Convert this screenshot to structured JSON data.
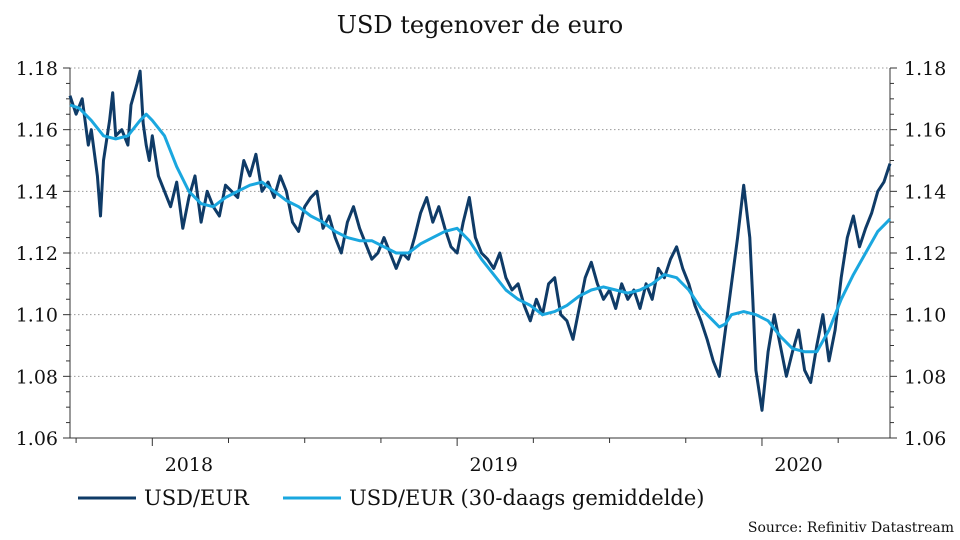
{
  "chart_data": {
    "type": "line",
    "title": "USD tegenover de euro",
    "source": "Source: Refinitiv Datastream",
    "ylim": [
      1.06,
      1.18
    ],
    "yticks": [
      "1.18",
      "1.16",
      "1.14",
      "1.12",
      "1.10",
      "1.08",
      "1.06"
    ],
    "xlim": [
      2017.73,
      2020.42
    ],
    "year_labels": [
      "2018",
      "2019",
      "2020"
    ],
    "grid": "horizontal dotted",
    "legend_position": "bottom-left",
    "colors": {
      "series1": "#0f3b67",
      "series2": "#1aa7df"
    },
    "series": [
      {
        "name": "USD/EUR",
        "x": [
          2017.73,
          2017.75,
          2017.77,
          2017.79,
          2017.8,
          2017.82,
          2017.83,
          2017.84,
          2017.86,
          2017.87,
          2017.88,
          2017.9,
          2017.92,
          2017.93,
          2017.95,
          2017.96,
          2017.97,
          2017.98,
          2017.99,
          2018.0,
          2018.02,
          2018.04,
          2018.06,
          2018.08,
          2018.1,
          2018.12,
          2018.14,
          2018.16,
          2018.18,
          2018.2,
          2018.22,
          2018.24,
          2018.26,
          2018.28,
          2018.3,
          2018.32,
          2018.34,
          2018.36,
          2018.38,
          2018.4,
          2018.42,
          2018.44,
          2018.46,
          2018.48,
          2018.5,
          2018.52,
          2018.54,
          2018.56,
          2018.58,
          2018.6,
          2018.62,
          2018.64,
          2018.66,
          2018.68,
          2018.7,
          2018.72,
          2018.74,
          2018.76,
          2018.78,
          2018.8,
          2018.82,
          2018.84,
          2018.86,
          2018.88,
          2018.9,
          2018.92,
          2018.94,
          2018.96,
          2018.98,
          2019.0,
          2019.02,
          2019.04,
          2019.06,
          2019.08,
          2019.1,
          2019.12,
          2019.14,
          2019.16,
          2019.18,
          2019.2,
          2019.22,
          2019.24,
          2019.26,
          2019.28,
          2019.3,
          2019.32,
          2019.34,
          2019.36,
          2019.38,
          2019.4,
          2019.42,
          2019.44,
          2019.46,
          2019.48,
          2019.5,
          2019.52,
          2019.54,
          2019.56,
          2019.58,
          2019.6,
          2019.62,
          2019.64,
          2019.66,
          2019.68,
          2019.7,
          2019.72,
          2019.74,
          2019.76,
          2019.78,
          2019.8,
          2019.82,
          2019.84,
          2019.86,
          2019.88,
          2019.9,
          2019.92,
          2019.94,
          2019.96,
          2019.97,
          2019.98,
          2020.0,
          2020.02,
          2020.04,
          2020.06,
          2020.08,
          2020.1,
          2020.12,
          2020.14,
          2020.16,
          2020.18,
          2020.2,
          2020.22,
          2020.24,
          2020.26,
          2020.28,
          2020.3,
          2020.32,
          2020.34,
          2020.36,
          2020.38,
          2020.4,
          2020.42
        ],
        "values": [
          1.171,
          1.165,
          1.17,
          1.155,
          1.16,
          1.145,
          1.132,
          1.15,
          1.163,
          1.172,
          1.158,
          1.16,
          1.155,
          1.168,
          1.175,
          1.179,
          1.162,
          1.155,
          1.15,
          1.158,
          1.145,
          1.14,
          1.135,
          1.143,
          1.128,
          1.138,
          1.145,
          1.13,
          1.14,
          1.135,
          1.132,
          1.142,
          1.14,
          1.138,
          1.15,
          1.145,
          1.152,
          1.14,
          1.143,
          1.138,
          1.145,
          1.14,
          1.13,
          1.127,
          1.135,
          1.138,
          1.14,
          1.128,
          1.132,
          1.125,
          1.12,
          1.13,
          1.135,
          1.128,
          1.123,
          1.118,
          1.12,
          1.125,
          1.12,
          1.115,
          1.12,
          1.118,
          1.125,
          1.133,
          1.138,
          1.13,
          1.135,
          1.128,
          1.122,
          1.12,
          1.13,
          1.138,
          1.125,
          1.12,
          1.118,
          1.115,
          1.12,
          1.112,
          1.108,
          1.11,
          1.103,
          1.098,
          1.105,
          1.1,
          1.11,
          1.112,
          1.1,
          1.098,
          1.092,
          1.102,
          1.112,
          1.117,
          1.11,
          1.105,
          1.108,
          1.102,
          1.11,
          1.105,
          1.108,
          1.102,
          1.11,
          1.105,
          1.115,
          1.112,
          1.118,
          1.122,
          1.115,
          1.11,
          1.103,
          1.098,
          1.092,
          1.085,
          1.08,
          1.095,
          1.11,
          1.125,
          1.142,
          1.125,
          1.105,
          1.082,
          1.069,
          1.088,
          1.1,
          1.09,
          1.08,
          1.088,
          1.095,
          1.082,
          1.078,
          1.09,
          1.1,
          1.085,
          1.095,
          1.112,
          1.125,
          1.132,
          1.122,
          1.128,
          1.133,
          1.14,
          1.143,
          1.149
        ]
      },
      {
        "name": "USD/EUR (30-daags gemiddelde)",
        "x": [
          2017.73,
          2017.76,
          2017.8,
          2017.84,
          2017.88,
          2017.92,
          2017.96,
          2017.98,
          2018.0,
          2018.04,
          2018.08,
          2018.12,
          2018.16,
          2018.2,
          2018.24,
          2018.28,
          2018.32,
          2018.36,
          2018.4,
          2018.44,
          2018.48,
          2018.52,
          2018.56,
          2018.6,
          2018.64,
          2018.68,
          2018.72,
          2018.76,
          2018.8,
          2018.84,
          2018.88,
          2018.92,
          2018.96,
          2019.0,
          2019.04,
          2019.08,
          2019.12,
          2019.16,
          2019.2,
          2019.24,
          2019.28,
          2019.32,
          2019.36,
          2019.4,
          2019.44,
          2019.48,
          2019.52,
          2019.56,
          2019.6,
          2019.64,
          2019.68,
          2019.72,
          2019.76,
          2019.8,
          2019.84,
          2019.86,
          2019.88,
          2019.9,
          2019.94,
          2019.98,
          2020.02,
          2020.06,
          2020.1,
          2020.14,
          2020.18,
          2020.22,
          2020.26,
          2020.3,
          2020.34,
          2020.38,
          2020.42
        ],
        "values": [
          1.168,
          1.167,
          1.163,
          1.158,
          1.157,
          1.158,
          1.163,
          1.165,
          1.163,
          1.158,
          1.148,
          1.14,
          1.136,
          1.135,
          1.138,
          1.14,
          1.142,
          1.143,
          1.14,
          1.137,
          1.135,
          1.132,
          1.13,
          1.127,
          1.125,
          1.124,
          1.124,
          1.122,
          1.12,
          1.12,
          1.123,
          1.125,
          1.127,
          1.128,
          1.124,
          1.118,
          1.113,
          1.108,
          1.105,
          1.103,
          1.1,
          1.101,
          1.103,
          1.106,
          1.108,
          1.109,
          1.108,
          1.107,
          1.108,
          1.11,
          1.113,
          1.112,
          1.108,
          1.102,
          1.098,
          1.096,
          1.097,
          1.1,
          1.101,
          1.1,
          1.098,
          1.093,
          1.089,
          1.088,
          1.088,
          1.095,
          1.105,
          1.113,
          1.12,
          1.127,
          1.131
        ]
      }
    ]
  }
}
